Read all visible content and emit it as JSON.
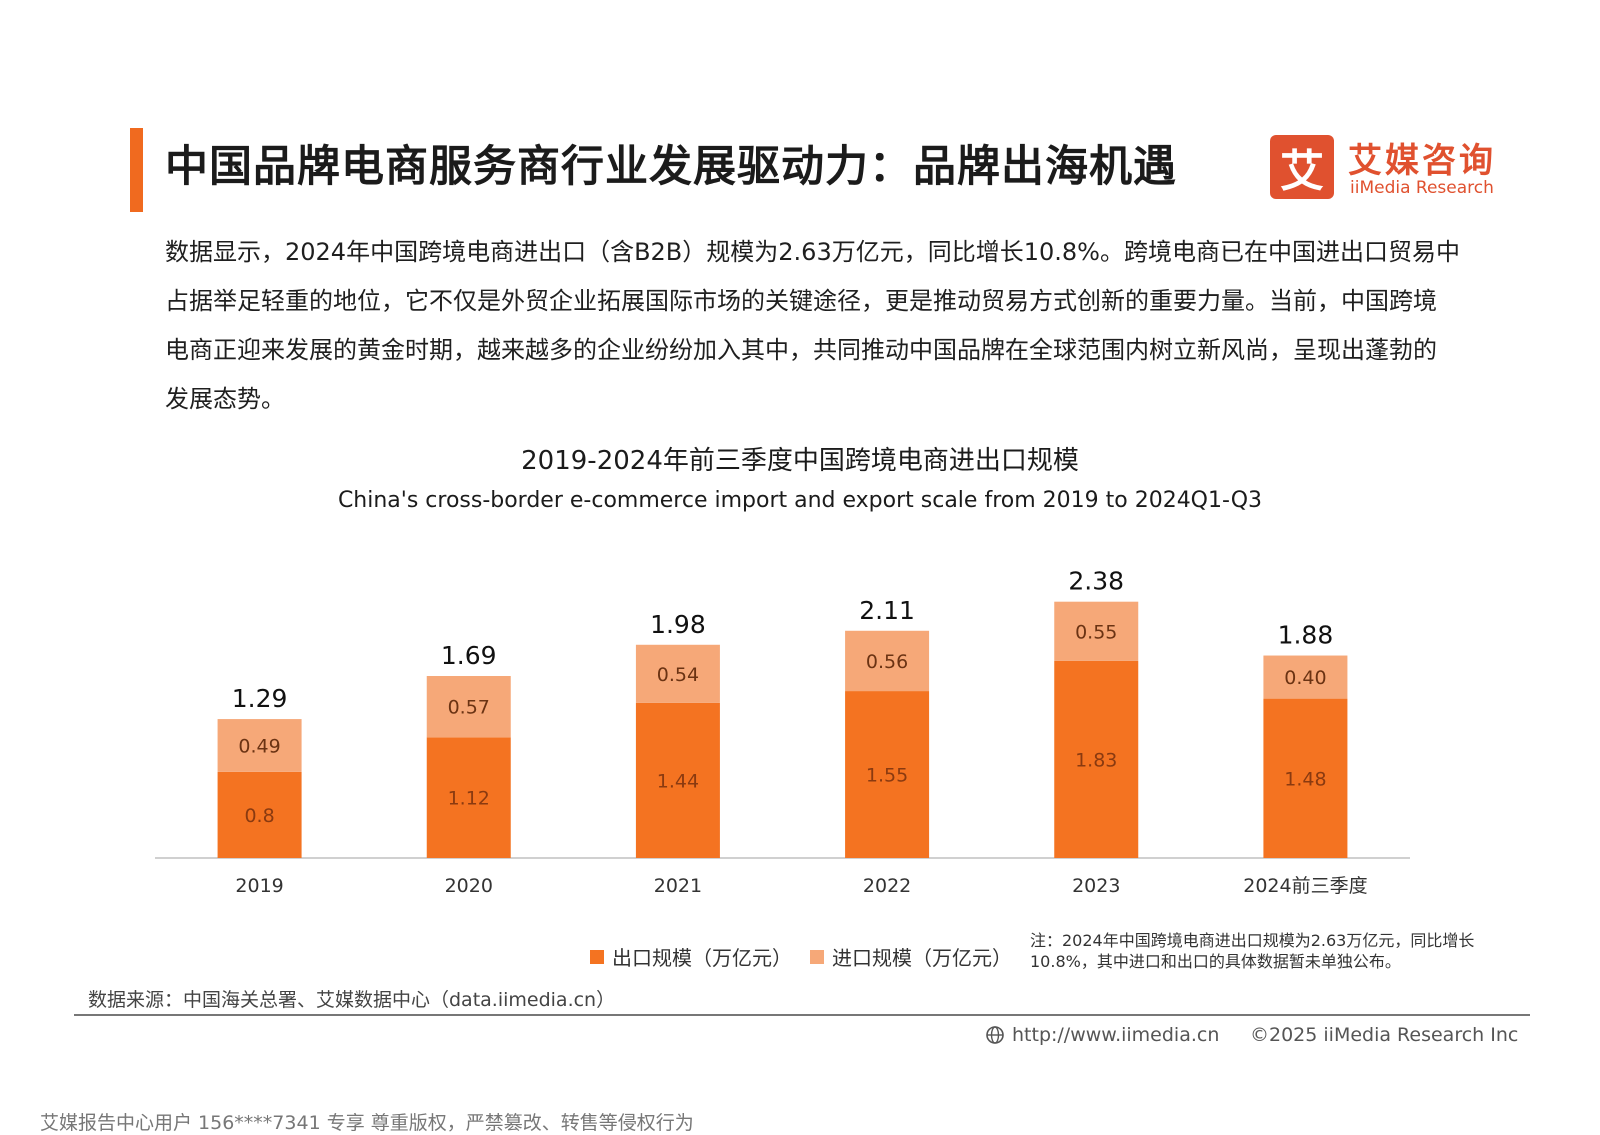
{
  "header": {
    "title": "中国品牌电商服务商行业发展驱动力：品牌出海机遇",
    "logo_mark": "艾",
    "logo_cn": "艾媒咨询",
    "logo_en": "iiMedia Research"
  },
  "intro": "数据显示，2024年中国跨境电商进出口（含B2B）规模为2.63万亿元，同比增长10.8%。跨境电商已在中国进出口贸易中占据举足轻重的地位，它不仅是外贸企业拓展国际市场的关键途径，更是推动贸易方式创新的重要力量。当前，中国跨境电商正迎来发展的黄金时期，越来越多的企业纷纷加入其中，共同推动中国品牌在全球范围内树立新风尚，呈现出蓬勃的发展态势。",
  "chart_data": {
    "type": "bar",
    "stacked": true,
    "title": "2019-2024年前三季度中国跨境电商进出口规模",
    "subtitle": "China's cross-border e-commerce import and export scale from 2019 to 2024Q1-Q3",
    "categories": [
      "2019",
      "2020",
      "2021",
      "2022",
      "2023",
      "2024前三季度"
    ],
    "series": [
      {
        "name": "出口规模（万亿元）",
        "values": [
          0.8,
          1.12,
          1.44,
          1.55,
          1.83,
          1.48
        ],
        "labels": [
          "0.8",
          "1.12",
          "1.44",
          "1.55",
          "1.83",
          "1.48"
        ],
        "color": "#f47321"
      },
      {
        "name": "进口规模（万亿元）",
        "values": [
          0.49,
          0.57,
          0.54,
          0.56,
          0.55,
          0.4
        ],
        "labels": [
          "0.49",
          "0.57",
          "0.54",
          "0.56",
          "0.55",
          "0.40"
        ],
        "color": "#f6a878"
      }
    ],
    "totals": [
      "1.29",
      "1.69",
      "1.98",
      "2.11",
      "2.38",
      "1.88"
    ],
    "ylim": [
      0,
      2.6
    ],
    "grid": false,
    "legend": "bottom"
  },
  "note": "注：2024年中国跨境电商进出口规模为2.63万亿元，同比增长10.8%，其中进口和出口的具体数据暂未单独公布。",
  "source": "数据来源：中国海关总署、艾媒数据中心（data.iimedia.cn）",
  "footer": {
    "url": "http://www.iimedia.cn",
    "copyright": "©2025  iiMedia Research  Inc"
  },
  "watermark": "艾媒报告中心用户 156****7341 专享 尊重版权，严禁篡改、转售等侵权行为"
}
